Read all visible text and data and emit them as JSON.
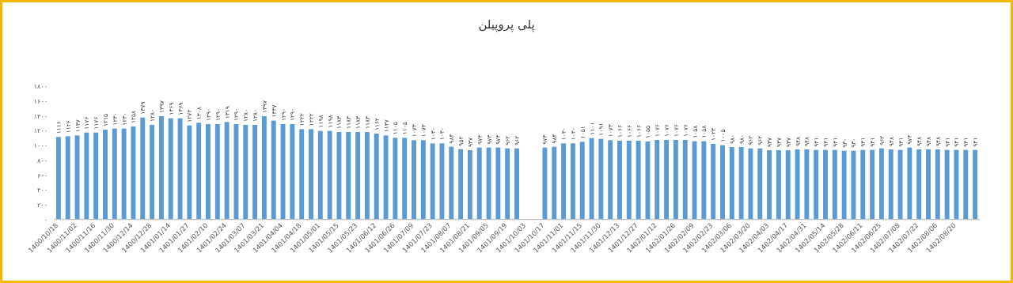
{
  "chart_data": {
    "type": "bar",
    "title": "پلی پروپیلن",
    "categories": [
      "1400/10/18",
      null,
      "1400/11/02",
      null,
      "1400/11/16",
      null,
      "1400/11/30",
      null,
      "1400/12/14",
      null,
      "1400/12/28",
      null,
      "1401/01/14",
      null,
      "1401/01/27",
      null,
      "1401/02/10",
      null,
      "1401/02/24",
      null,
      "1401/03/07",
      null,
      "1401/03/21",
      null,
      "1401/04/04",
      null,
      "1401/04/18",
      null,
      "1401/05/01",
      null,
      "1401/05/15",
      null,
      "1401/05/23",
      null,
      "1401/06/12",
      null,
      "1401/06/26",
      null,
      "1401/07/09",
      null,
      "1401/07/23",
      null,
      "1401/08/07",
      null,
      "1401/08/21",
      null,
      "1401/09/05",
      null,
      "1401/09/19",
      null,
      "1401/10/03",
      null,
      "1401/10/17",
      null,
      "1401/11/01",
      null,
      "1401/11/15",
      null,
      "1401/11/30",
      null,
      "1401/12/13",
      null,
      "1401/12/27",
      null,
      "1402/01/12",
      null,
      "1402/01/26",
      null,
      "1402/02/09",
      null,
      "1402/02/23",
      null,
      "1402/03/06",
      null,
      "1402/03/20",
      null,
      "1402/04/03",
      null,
      "1402/04/17",
      null,
      "1402/04/31",
      null,
      "1402/05/14",
      null,
      "1402/05/28",
      null,
      "1402/06/11",
      null,
      "1402/06/25",
      null,
      "1402/07/08",
      null,
      "1402/07/22",
      null,
      "1402/08/06",
      null,
      "1402/08/20",
      null,
      null
    ],
    "values": [
      1116,
      1126,
      1137,
      1176,
      1176,
      1215,
      1230,
      1230,
      1258,
      1379,
      1280,
      1397,
      1369,
      1369,
      1272,
      1308,
      1290,
      1290,
      1319,
      1290,
      1280,
      1280,
      1397,
      1337,
      1290,
      1290,
      1222,
      1222,
      1198,
      1198,
      1183,
      1183,
      1183,
      1183,
      1162,
      1137,
      1105,
      1105,
      1073,
      1073,
      1030,
      1030,
      984,
      952,
      937,
      973,
      973,
      973,
      962,
      962,
      null,
      null,
      973,
      984,
      1030,
      1030,
      1051,
      1101,
      1091,
      1073,
      1066,
      1066,
      1066,
      1055,
      1076,
      1076,
      1076,
      1076,
      1058,
      1058,
      1023,
      1005,
      980,
      980,
      962,
      962,
      937,
      937,
      937,
      948,
      948,
      941,
      941,
      941,
      930,
      930,
      941,
      941,
      962,
      948,
      941,
      973,
      948,
      948,
      948,
      941,
      941,
      941,
      941
    ],
    "value_labels": [
      "۱۱۱۶",
      "۱۱۲۶",
      "۱۱۳۷",
      "۱۱۷۶",
      "۱۱۷۶",
      "۱۲۱۵",
      "۱۲۳۰",
      "۱۲۳۰",
      "۱۲۵۸",
      "۱۳۷۹",
      "۱۲۸۰",
      "۱۳۹۷",
      "۱۳۶۹",
      "۱۳۶۹",
      "۱۲۷۲",
      "۱۳۰۸",
      "۱۲۹۰",
      "۱۲۹۰",
      "۱۳۱۹",
      "۱۲۹۰",
      "۱۲۸۰",
      "۱۲۸۰",
      "۱۳۹۷",
      "۱۳۳۷",
      "۱۲۹۰",
      "۱۲۹۰",
      "۱۲۲۲",
      "۱۲۲۲",
      "۱۱۹۸",
      "۱۱۹۸",
      "۱۱۸۳",
      "۱۱۸۳",
      "۱۱۸۳",
      "۱۱۸۳",
      "۱۱۶۲",
      "۱۱۳۷",
      "۱۱۰۵",
      "۱۱۰۵",
      "۱۰۷۳",
      "۱۰۷۳",
      "۱۰۳۰",
      "۱۰۳۰",
      "۹۸۴",
      "۹۵۲",
      "۹۳۷",
      "۹۷۳",
      "۹۷۳",
      "۹۷۳",
      "۹۶۲",
      "۹۶۲",
      null,
      null,
      "۹۷۳",
      "۹۸۴",
      "۱۰۳۰",
      "۱۰۳۰",
      "۱۰۵۱",
      "۱۱۰۱",
      "۱۰۹۱",
      "۱۰۷۳",
      "۱۰۶۶",
      "۱۰۶۶",
      "۱۰۶۶",
      "۱۰۵۵",
      "۱۰۷۶",
      "۱۰۷۶",
      "۱۰۷۶",
      "۱۰۷۶",
      "۱۰۵۸",
      "۱۰۵۸",
      "۱۰۲۳",
      "۱۰۰۵",
      "۹۸۰",
      "۹۸۰",
      "۹۶۲",
      "۹۶۲",
      "۹۳۷",
      "۹۳۷",
      "۹۳۷",
      "۹۴۸",
      "۹۴۸",
      "۹۴۱",
      "۹۴۱",
      "۹۴۱",
      "۹۳۰",
      "۹۳۰",
      "۹۴۱",
      "۹۴۱",
      "۹۶۲",
      "۹۴۸",
      "۹۴۱",
      "۹۷۳",
      "۹۴۸",
      "۹۴۸",
      "۹۴۸",
      "۹۴۱",
      "۹۴۱",
      "۹۴۱",
      "۹۴۱"
    ],
    "color": "#5b9bd5",
    "ylim": [
      0,
      1800
    ],
    "yticks": [
      {
        "value": 0,
        "label": "۰"
      },
      {
        "value": 200,
        "label": "۲۰۰"
      },
      {
        "value": 400,
        "label": "۴۰۰"
      },
      {
        "value": 600,
        "label": "۶۰۰"
      },
      {
        "value": 800,
        "label": "۸۰۰"
      },
      {
        "value": 1000,
        "label": "۱۰۰۰"
      },
      {
        "value": 1200,
        "label": "۱۲۰۰"
      },
      {
        "value": 1400,
        "label": "۱۴۰۰"
      },
      {
        "value": 1600,
        "label": "۱۶۰۰"
      },
      {
        "value": 1800,
        "label": "۱۸۰۰"
      }
    ],
    "grid": false
  }
}
